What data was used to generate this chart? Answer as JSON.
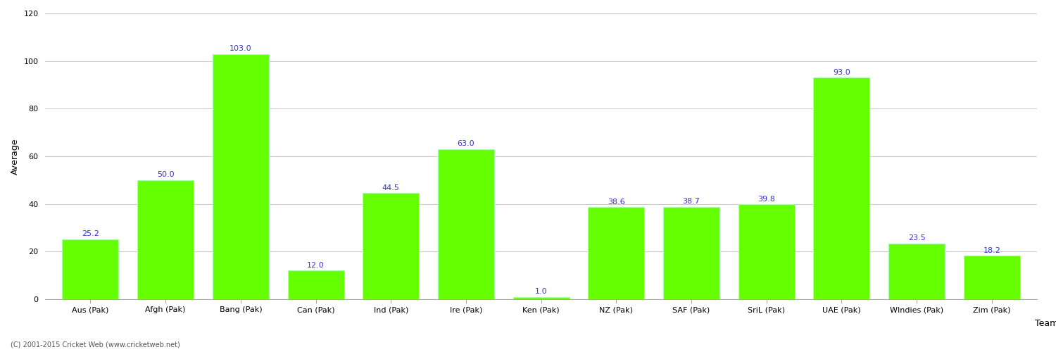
{
  "categories": [
    "Aus (Pak)",
    "Afgh (Pak)",
    "Bang (Pak)",
    "Can (Pak)",
    "Ind (Pak)",
    "Ire (Pak)",
    "Ken (Pak)",
    "NZ (Pak)",
    "SAF (Pak)",
    "SriL (Pak)",
    "UAE (Pak)",
    "WIndies (Pak)",
    "Zim (Pak)"
  ],
  "values": [
    25.2,
    50.0,
    103.0,
    12.0,
    44.5,
    63.0,
    1.0,
    38.6,
    38.7,
    39.8,
    93.0,
    23.5,
    18.2
  ],
  "bar_color": "#66ff00",
  "bar_edge_color": "#aaffaa",
  "value_color": "#3333cc",
  "xlabel": "Team",
  "ylabel": "Average",
  "ylim": [
    0,
    120
  ],
  "yticks": [
    0,
    20,
    40,
    60,
    80,
    100,
    120
  ],
  "grid_color": "#cccccc",
  "background_color": "#ffffff",
  "axis_label_fontsize": 9,
  "tick_label_fontsize": 8,
  "value_fontsize": 8,
  "footer_text": "(C) 2001-2015 Cricket Web (www.cricketweb.net)"
}
